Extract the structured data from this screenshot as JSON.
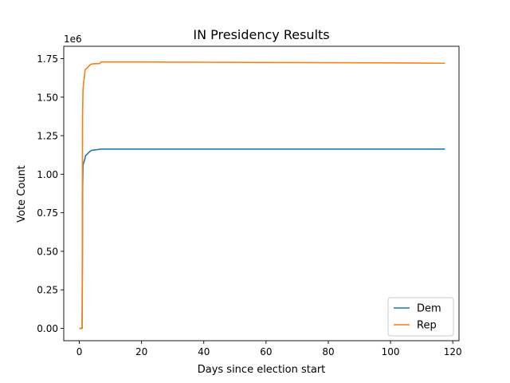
{
  "chart_data": {
    "type": "line",
    "title": "IN Presidency Results",
    "xlabel": "Days since election start",
    "ylabel": "Vote Count",
    "y_offset_label": "1e6",
    "xlim": [
      -5,
      122
    ],
    "ylim": [
      -80000,
      1830000
    ],
    "x_ticks": [
      0,
      20,
      40,
      60,
      80,
      100,
      120
    ],
    "x_tick_labels": [
      "0",
      "20",
      "40",
      "60",
      "80",
      "100",
      "120"
    ],
    "y_ticks": [
      0,
      250000,
      500000,
      750000,
      1000000,
      1250000,
      1500000,
      1750000
    ],
    "y_tick_labels": [
      "0.00",
      "0.25",
      "0.50",
      "0.75",
      "1.00",
      "1.25",
      "1.50",
      "1.75"
    ],
    "grid": false,
    "legend_position": "lower-right",
    "series": [
      {
        "name": "Dem",
        "color": "#1f77b4",
        "points": [
          [
            0.0,
            0
          ],
          [
            0.9,
            0
          ],
          [
            1.0,
            400000
          ],
          [
            1.05,
            900000
          ],
          [
            1.2,
            1060000
          ],
          [
            1.5,
            1080000
          ],
          [
            1.8,
            1100000
          ],
          [
            2.0,
            1120000
          ],
          [
            2.5,
            1130000
          ],
          [
            3.0,
            1140000
          ],
          [
            3.5,
            1150000
          ],
          [
            4.0,
            1155000
          ],
          [
            5.0,
            1158000
          ],
          [
            6.0,
            1160000
          ],
          [
            7.0,
            1163000
          ],
          [
            20.0,
            1163000
          ],
          [
            60.0,
            1163000
          ],
          [
            100.0,
            1163000
          ],
          [
            117.5,
            1163000
          ]
        ]
      },
      {
        "name": "Rep",
        "color": "#ff7f0e",
        "points": [
          [
            0.0,
            0
          ],
          [
            0.9,
            0
          ],
          [
            1.0,
            800000
          ],
          [
            1.05,
            1400000
          ],
          [
            1.2,
            1550000
          ],
          [
            1.4,
            1600000
          ],
          [
            1.6,
            1620000
          ],
          [
            1.8,
            1670000
          ],
          [
            2.0,
            1680000
          ],
          [
            2.5,
            1690000
          ],
          [
            3.0,
            1700000
          ],
          [
            3.5,
            1710000
          ],
          [
            4.0,
            1715000
          ],
          [
            5.0,
            1717000
          ],
          [
            6.5,
            1718000
          ],
          [
            7.0,
            1728000
          ],
          [
            20.0,
            1728000
          ],
          [
            60.0,
            1725000
          ],
          [
            100.0,
            1722000
          ],
          [
            117.5,
            1720000
          ]
        ]
      }
    ]
  }
}
